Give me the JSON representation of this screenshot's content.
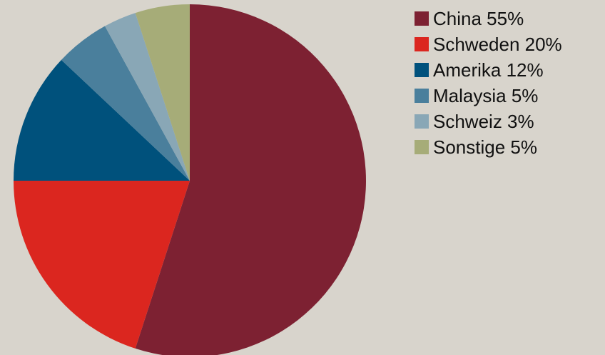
{
  "chart_data": {
    "type": "pie",
    "title": "",
    "legend_position": "right",
    "slices": [
      {
        "label": "China 55%",
        "value": 55,
        "color": "#7d2132"
      },
      {
        "label": "Schweden 20%",
        "value": 20,
        "color": "#db261f"
      },
      {
        "label": "Amerika 12%",
        "value": 12,
        "color": "#00517c"
      },
      {
        "label": "Malaysia 5%",
        "value": 5,
        "color": "#4a7f9c"
      },
      {
        "label": "Schweiz 3%",
        "value": 3,
        "color": "#89a7b6"
      },
      {
        "label": "Sonstige 5%",
        "value": 5,
        "color": "#a6ac78"
      }
    ]
  }
}
